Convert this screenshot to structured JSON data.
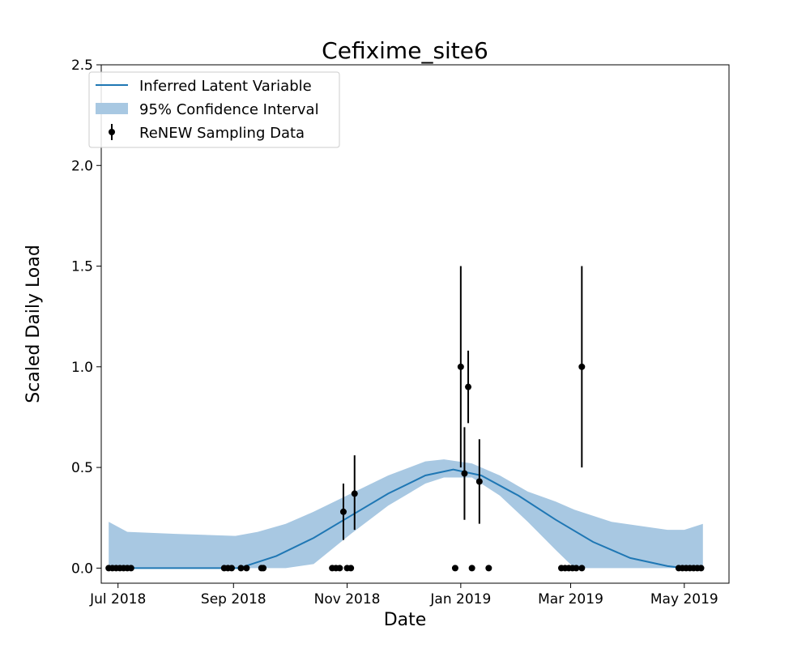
{
  "colors": {
    "line": "#1f77b4",
    "band": "#a8c8e2",
    "points": "#000000",
    "background": "#ffffff"
  },
  "chart_data": {
    "type": "line",
    "title": "Cefixime_site6",
    "xlabel": "Date",
    "ylabel": "Scaled Daily Load",
    "xlim": [
      "2018-06-22",
      "2019-05-25"
    ],
    "ylim": [
      -0.075,
      2.5
    ],
    "x_ticks": [
      {
        "date": "2018-07-01",
        "label": "Jul 2018"
      },
      {
        "date": "2018-09-01",
        "label": "Sep 2018"
      },
      {
        "date": "2018-11-01",
        "label": "Nov 2018"
      },
      {
        "date": "2019-01-01",
        "label": "Jan 2019"
      },
      {
        "date": "2019-03-01",
        "label": "Mar 2019"
      },
      {
        "date": "2019-05-01",
        "label": "May 2019"
      }
    ],
    "y_ticks": [
      {
        "value": 0.0,
        "label": "0.0"
      },
      {
        "value": 0.5,
        "label": "0.5"
      },
      {
        "value": 1.0,
        "label": "1.0"
      },
      {
        "value": 1.5,
        "label": "1.5"
      },
      {
        "value": 2.0,
        "label": "2.0"
      },
      {
        "value": 2.5,
        "label": "2.5"
      }
    ],
    "grid": false,
    "legend_position": "top-left",
    "series": [
      {
        "name": "Inferred Latent Variable",
        "kind": "line",
        "points": [
          {
            "x": "2018-06-26",
            "y": 0.0
          },
          {
            "x": "2018-07-26",
            "y": 0.0
          },
          {
            "x": "2018-08-25",
            "y": 0.0
          },
          {
            "x": "2018-09-04",
            "y": 0.0
          },
          {
            "x": "2018-09-24",
            "y": 0.06
          },
          {
            "x": "2018-10-14",
            "y": 0.15
          },
          {
            "x": "2018-11-03",
            "y": 0.26
          },
          {
            "x": "2018-11-23",
            "y": 0.37
          },
          {
            "x": "2018-12-13",
            "y": 0.46
          },
          {
            "x": "2018-12-28",
            "y": 0.49
          },
          {
            "x": "2019-01-12",
            "y": 0.46
          },
          {
            "x": "2019-02-01",
            "y": 0.36
          },
          {
            "x": "2019-02-21",
            "y": 0.24
          },
          {
            "x": "2019-03-13",
            "y": 0.13
          },
          {
            "x": "2019-04-02",
            "y": 0.05
          },
          {
            "x": "2019-04-22",
            "y": 0.01
          },
          {
            "x": "2019-05-01",
            "y": 0.0
          },
          {
            "x": "2019-05-11",
            "y": 0.0
          }
        ]
      },
      {
        "name": "95% Confidence Interval",
        "kind": "band",
        "points": [
          {
            "x": "2018-06-26",
            "lower": 0.0,
            "upper": 0.23
          },
          {
            "x": "2018-07-06",
            "lower": 0.0,
            "upper": 0.18
          },
          {
            "x": "2018-08-01",
            "lower": 0.0,
            "upper": 0.17
          },
          {
            "x": "2018-09-02",
            "lower": 0.0,
            "upper": 0.16
          },
          {
            "x": "2018-09-14",
            "lower": 0.0,
            "upper": 0.18
          },
          {
            "x": "2018-09-29",
            "lower": 0.0,
            "upper": 0.22
          },
          {
            "x": "2018-10-14",
            "lower": 0.02,
            "upper": 0.28
          },
          {
            "x": "2018-11-03",
            "lower": 0.17,
            "upper": 0.37
          },
          {
            "x": "2018-11-23",
            "lower": 0.31,
            "upper": 0.46
          },
          {
            "x": "2018-12-13",
            "lower": 0.42,
            "upper": 0.53
          },
          {
            "x": "2018-12-23",
            "lower": 0.45,
            "upper": 0.54
          },
          {
            "x": "2019-01-07",
            "lower": 0.45,
            "upper": 0.52
          },
          {
            "x": "2019-01-22",
            "lower": 0.36,
            "upper": 0.46
          },
          {
            "x": "2019-02-06",
            "lower": 0.23,
            "upper": 0.38
          },
          {
            "x": "2019-02-21",
            "lower": 0.09,
            "upper": 0.33
          },
          {
            "x": "2019-03-03",
            "lower": 0.0,
            "upper": 0.29
          },
          {
            "x": "2019-03-23",
            "lower": 0.0,
            "upper": 0.23
          },
          {
            "x": "2019-04-22",
            "lower": 0.0,
            "upper": 0.19
          },
          {
            "x": "2019-05-01",
            "lower": 0.0,
            "upper": 0.19
          },
          {
            "x": "2019-05-11",
            "lower": 0.0,
            "upper": 0.22
          }
        ]
      },
      {
        "name": "ReNEW Sampling Data",
        "kind": "errorbar",
        "points": [
          {
            "x": "2018-06-26",
            "y": 0.0
          },
          {
            "x": "2018-06-28",
            "y": 0.0
          },
          {
            "x": "2018-06-30",
            "y": 0.0
          },
          {
            "x": "2018-07-02",
            "y": 0.0
          },
          {
            "x": "2018-07-04",
            "y": 0.0
          },
          {
            "x": "2018-07-06",
            "y": 0.0
          },
          {
            "x": "2018-07-08",
            "y": 0.0
          },
          {
            "x": "2018-08-27",
            "y": 0.0
          },
          {
            "x": "2018-08-29",
            "y": 0.0
          },
          {
            "x": "2018-08-31",
            "y": 0.0
          },
          {
            "x": "2018-09-05",
            "y": 0.0
          },
          {
            "x": "2018-09-08",
            "y": 0.0
          },
          {
            "x": "2018-09-16",
            "y": 0.0
          },
          {
            "x": "2018-09-17",
            "y": 0.0
          },
          {
            "x": "2018-10-24",
            "y": 0.0
          },
          {
            "x": "2018-10-26",
            "y": 0.0
          },
          {
            "x": "2018-10-28",
            "y": 0.0
          },
          {
            "x": "2018-10-30",
            "y": 0.28,
            "err_low": 0.14,
            "err_high": 0.42
          },
          {
            "x": "2018-11-01",
            "y": 0.0
          },
          {
            "x": "2018-11-03",
            "y": 0.0
          },
          {
            "x": "2018-11-05",
            "y": 0.37,
            "err_low": 0.19,
            "err_high": 0.56
          },
          {
            "x": "2018-12-29",
            "y": 0.0
          },
          {
            "x": "2019-01-01",
            "y": 1.0,
            "err_low": 0.5,
            "err_high": 1.5
          },
          {
            "x": "2019-01-03",
            "y": 0.47,
            "err_low": 0.24,
            "err_high": 0.7
          },
          {
            "x": "2019-01-05",
            "y": 0.9,
            "err_low": 0.72,
            "err_high": 1.08
          },
          {
            "x": "2019-01-07",
            "y": 0.0
          },
          {
            "x": "2019-01-11",
            "y": 0.43,
            "err_low": 0.22,
            "err_high": 0.64
          },
          {
            "x": "2019-01-16",
            "y": 0.0
          },
          {
            "x": "2019-02-24",
            "y": 0.0
          },
          {
            "x": "2019-02-26",
            "y": 0.0
          },
          {
            "x": "2019-02-28",
            "y": 0.0
          },
          {
            "x": "2019-03-02",
            "y": 0.0
          },
          {
            "x": "2019-03-04",
            "y": 0.0
          },
          {
            "x": "2019-03-07",
            "y": 0.0
          },
          {
            "x": "2019-03-07",
            "y": 1.0,
            "err_low": 0.5,
            "err_high": 1.5
          },
          {
            "x": "2019-04-28",
            "y": 0.0
          },
          {
            "x": "2019-04-30",
            "y": 0.0
          },
          {
            "x": "2019-05-02",
            "y": 0.0
          },
          {
            "x": "2019-05-04",
            "y": 0.0
          },
          {
            "x": "2019-05-06",
            "y": 0.0
          },
          {
            "x": "2019-05-08",
            "y": 0.0
          },
          {
            "x": "2019-05-10",
            "y": 0.0
          }
        ]
      }
    ]
  }
}
